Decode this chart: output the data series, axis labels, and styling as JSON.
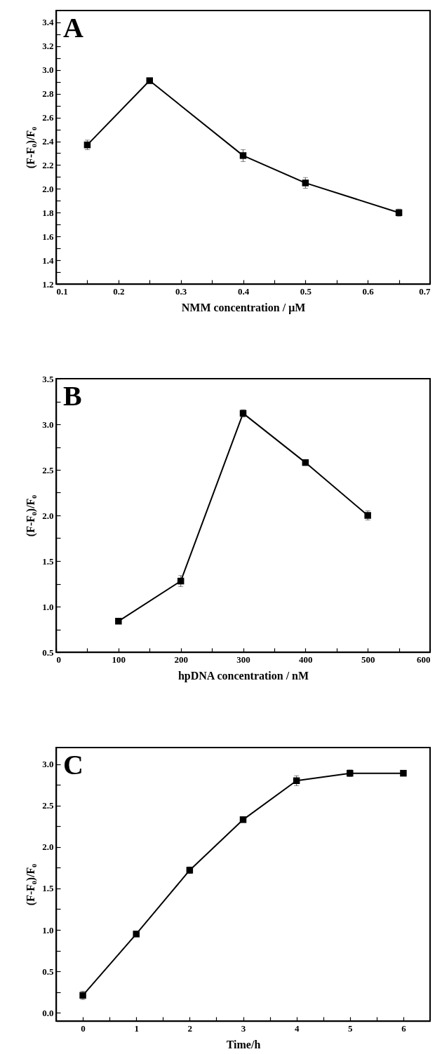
{
  "chart_data": [
    {
      "type": "line",
      "annotations": [
        "A"
      ],
      "xlabel": "NMM concentration  / μM",
      "ylabel": "(F-F₀)/F₀",
      "x": [
        0.15,
        0.25,
        0.4,
        0.5,
        0.65
      ],
      "series": [
        {
          "color": "#000000",
          "values": [
            2.37,
            2.91,
            2.28,
            2.05,
            1.8
          ],
          "errors": [
            0.04,
            0.02,
            0.05,
            0.045,
            0.03
          ]
        }
      ],
      "xlim": [
        0.1,
        0.7
      ],
      "xticks": [
        0.1,
        {
          "value": 0.15,
          "label": null
        },
        0.2,
        {
          "value": 0.25,
          "label": null
        },
        0.3,
        {
          "value": 0.35,
          "label": null
        },
        0.4,
        {
          "value": 0.45,
          "label": null
        },
        0.5,
        {
          "value": 0.55,
          "label": null
        },
        0.6,
        {
          "value": 0.65,
          "label": null
        },
        0.7
      ],
      "ylim": [
        1.2,
        3.5
      ],
      "yticks": [
        1.2,
        {
          "value": 1.3,
          "label": null
        },
        1.4,
        {
          "value": 1.5,
          "label": null
        },
        1.6,
        {
          "value": 1.7,
          "label": null
        },
        1.8,
        {
          "value": 1.9,
          "label": null
        },
        {
          "value": 2,
          "label": "2.0"
        },
        {
          "value": 2.1,
          "label": null
        },
        2.2,
        {
          "value": 2.3,
          "label": null
        },
        2.4,
        {
          "value": 2.5,
          "label": null
        },
        2.6,
        {
          "value": 2.7,
          "label": null
        },
        2.8,
        {
          "value": 2.9,
          "label": null
        },
        {
          "value": 3,
          "label": "3.0"
        },
        {
          "value": 3.1,
          "label": null
        },
        3.2,
        {
          "value": 3.3,
          "label": null
        },
        3.4
      ],
      "marker": "square",
      "line_style": "solid",
      "grid": false
    },
    {
      "type": "line",
      "annotations": [
        "B"
      ],
      "xlabel": "hpDNA concentration  / nM",
      "ylabel": "(F-F₀)/F₀",
      "x": [
        100,
        200,
        300,
        400,
        500
      ],
      "series": [
        {
          "color": "#000000",
          "values": [
            0.84,
            1.28,
            3.12,
            2.58,
            2.0
          ],
          "errors": [
            0.02,
            0.06,
            0.04,
            0.02,
            0.05
          ]
        }
      ],
      "xlim": [
        0,
        600
      ],
      "xticks": [
        0,
        {
          "value": 50,
          "label": null
        },
        100,
        {
          "value": 150,
          "label": null
        },
        200,
        {
          "value": 250,
          "label": null
        },
        300,
        {
          "value": 350,
          "label": null
        },
        400,
        {
          "value": 450,
          "label": null
        },
        500,
        {
          "value": 550,
          "label": null
        },
        600
      ],
      "ylim": [
        0.5,
        3.5
      ],
      "yticks": [
        0.5,
        {
          "value": 0.75,
          "label": null
        },
        {
          "value": 1,
          "label": "1.0"
        },
        {
          "value": 1.25,
          "label": null
        },
        1.5,
        {
          "value": 1.75,
          "label": null
        },
        {
          "value": 2,
          "label": "2.0"
        },
        {
          "value": 2.25,
          "label": null
        },
        2.5,
        {
          "value": 2.75,
          "label": null
        },
        {
          "value": 3,
          "label": "3.0"
        },
        {
          "value": 3.25,
          "label": null
        },
        3.5
      ],
      "marker": "square",
      "line_style": "solid",
      "grid": false
    },
    {
      "type": "line",
      "annotations": [
        "C"
      ],
      "xlabel": "Time/h",
      "ylabel": "(F-F₀)/F₀",
      "x": [
        0,
        1,
        2,
        3,
        4,
        5,
        6
      ],
      "series": [
        {
          "color": "#000000",
          "values": [
            0.21,
            0.95,
            1.72,
            2.33,
            2.8,
            2.89,
            2.89
          ],
          "errors": [
            0.05,
            0.02,
            0.04,
            0.02,
            0.06,
            0.04,
            0.02
          ]
        }
      ],
      "xlim": [
        -0.5,
        6.5
      ],
      "xticks": [
        0,
        {
          "value": 0.5,
          "label": null
        },
        1,
        {
          "value": 1.5,
          "label": null
        },
        2,
        {
          "value": 2.5,
          "label": null
        },
        3,
        {
          "value": 3.5,
          "label": null
        },
        4,
        {
          "value": 4.5,
          "label": null
        },
        5,
        {
          "value": 5.5,
          "label": null
        },
        6
      ],
      "ylim": [
        -0.1,
        3.2
      ],
      "yticks": [
        {
          "value": 0,
          "label": "0.0"
        },
        {
          "value": 0.25,
          "label": null
        },
        0.5,
        {
          "value": 0.75,
          "label": null
        },
        {
          "value": 1,
          "label": "1.0"
        },
        {
          "value": 1.25,
          "label": null
        },
        1.5,
        {
          "value": 1.75,
          "label": null
        },
        {
          "value": 2,
          "label": "2.0"
        },
        {
          "value": 2.25,
          "label": null
        },
        2.5,
        {
          "value": 2.75,
          "label": null
        },
        {
          "value": 3,
          "label": "3.0"
        }
      ],
      "marker": "square",
      "line_style": "solid",
      "grid": false
    }
  ]
}
